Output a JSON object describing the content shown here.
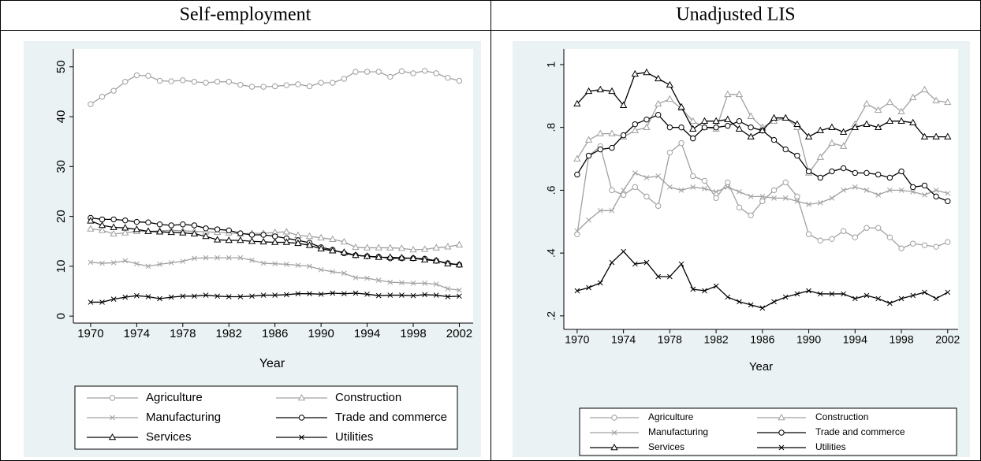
{
  "chart_data": [
    {
      "type": "line",
      "title": "Self-employment",
      "x_label": "Year",
      "x": [
        1970,
        1971,
        1972,
        1973,
        1974,
        1975,
        1976,
        1977,
        1978,
        1979,
        1980,
        1981,
        1982,
        1983,
        1984,
        1985,
        1986,
        1987,
        1988,
        1989,
        1990,
        1991,
        1992,
        1993,
        1994,
        1995,
        1996,
        1997,
        1998,
        1999,
        2000,
        2001,
        2002
      ],
      "xlim": [
        1968.5,
        2003.2
      ],
      "xticks": [
        1970,
        1974,
        1978,
        1982,
        1986,
        1990,
        1994,
        1998,
        2002
      ],
      "ylim": [
        -1.4,
        53.6
      ],
      "yticks": [
        0,
        10,
        20,
        30,
        40,
        50
      ],
      "series": [
        {
          "name": "Agriculture",
          "color": "#a0a0a0",
          "marker": "circle",
          "values": [
            42.5,
            44,
            45.2,
            47,
            48.3,
            48.2,
            47.2,
            47.1,
            47.3,
            47,
            46.8,
            47,
            47,
            46.4,
            46,
            46,
            46.1,
            46.3,
            46.5,
            46.1,
            46.8,
            46.8,
            47.6,
            49,
            49,
            49,
            48,
            49.1,
            48.7,
            49.2,
            48.7,
            47.8,
            47.2
          ]
        },
        {
          "name": "Construction",
          "color": "#a0a0a0",
          "marker": "triangle",
          "values": [
            17.5,
            17.2,
            16.5,
            16.7,
            17,
            17,
            17.1,
            17.2,
            17.1,
            17,
            16.9,
            16.8,
            16.7,
            16.5,
            16.6,
            16.6,
            16.8,
            16.9,
            16.2,
            16,
            15.7,
            15.4,
            14.9,
            13.8,
            13.7,
            13.7,
            13.7,
            13.6,
            13.3,
            13.4,
            13.7,
            13.9,
            14.3
          ]
        },
        {
          "name": "Manufacturing",
          "color": "#a0a0a0",
          "marker": "x",
          "values": [
            10.8,
            10.6,
            10.7,
            11.1,
            10.5,
            10,
            10.4,
            10.7,
            11,
            11.6,
            11.7,
            11.7,
            11.7,
            11.7,
            11.2,
            10.6,
            10.5,
            10.4,
            10.2,
            10,
            9.3,
            8.9,
            8.6,
            7.7,
            7.6,
            7.2,
            6.8,
            6.7,
            6.6,
            6.6,
            6.4,
            5.5,
            5.2
          ]
        },
        {
          "name": "Trade and commerce",
          "color": "#000000",
          "marker": "circle",
          "values": [
            19.7,
            19.4,
            19.4,
            19.2,
            18.9,
            18.8,
            18.4,
            18.2,
            18.4,
            18.2,
            17.6,
            17.4,
            17.2,
            16.6,
            16.3,
            16.3,
            16,
            15.6,
            15.2,
            14.7,
            13.8,
            13.3,
            12.6,
            12.2,
            12,
            11.9,
            11.6,
            11.6,
            11.6,
            11.5,
            11.1,
            10.6,
            10.3
          ]
        },
        {
          "name": "Services",
          "color": "#000000",
          "marker": "triangle",
          "values": [
            19.1,
            18.2,
            17.8,
            17.7,
            17.4,
            17,
            16.9,
            16.8,
            16.7,
            16.5,
            16,
            15.3,
            15.2,
            15.2,
            15,
            14.9,
            14.8,
            14.8,
            14.6,
            14.2,
            13.5,
            13.1,
            12.8,
            12.2,
            12,
            11.8,
            11.8,
            11.7,
            11.6,
            11.3,
            11.1,
            10.5,
            10.3
          ]
        },
        {
          "name": "Utilities",
          "color": "#000000",
          "marker": "x",
          "values": [
            2.8,
            2.8,
            3.4,
            3.8,
            4.1,
            3.9,
            3.5,
            3.8,
            4,
            4,
            4.2,
            4,
            3.9,
            3.9,
            4,
            4.2,
            4.2,
            4.3,
            4.5,
            4.5,
            4.4,
            4.6,
            4.5,
            4.6,
            4.4,
            4.1,
            4.2,
            4.2,
            4.1,
            4.3,
            4.2,
            3.9,
            4
          ]
        }
      ]
    },
    {
      "type": "line",
      "title": "Unadjusted LIS",
      "x_label": "Year",
      "x": [
        1970,
        1971,
        1972,
        1973,
        1974,
        1975,
        1976,
        1977,
        1978,
        1979,
        1980,
        1981,
        1982,
        1983,
        1984,
        1985,
        1986,
        1987,
        1988,
        1989,
        1990,
        1991,
        1992,
        1993,
        1994,
        1995,
        1996,
        1997,
        1998,
        1999,
        2000,
        2001,
        2002
      ],
      "xlim": [
        1968.85,
        2002.9
      ],
      "xticks": [
        1970,
        1974,
        1978,
        1982,
        1986,
        1990,
        1994,
        1998,
        2002
      ],
      "ylim": [
        0.157,
        1.05
      ],
      "yticks": [
        {
          "value": 0.2,
          "label": ".2"
        },
        {
          "value": 0.4,
          "label": ".4"
        },
        {
          "value": 0.6,
          "label": ".6"
        },
        {
          "value": 0.8,
          "label": ".8"
        },
        1
      ],
      "series": [
        {
          "name": "Agriculture",
          "color": "#a0a0a0",
          "marker": "circle",
          "values": [
            0.46,
            0.71,
            0.74,
            0.6,
            0.585,
            0.61,
            0.58,
            0.55,
            0.72,
            0.75,
            0.645,
            0.63,
            0.575,
            0.625,
            0.545,
            0.52,
            0.565,
            0.6,
            0.625,
            0.58,
            0.46,
            0.44,
            0.445,
            0.47,
            0.45,
            0.48,
            0.48,
            0.45,
            0.415,
            0.43,
            0.425,
            0.42,
            0.435
          ]
        },
        {
          "name": "Construction",
          "color": "#a0a0a0",
          "marker": "triangle",
          "values": [
            0.7,
            0.76,
            0.78,
            0.78,
            0.77,
            0.79,
            0.8,
            0.875,
            0.89,
            0.86,
            0.82,
            0.8,
            0.795,
            0.905,
            0.905,
            0.835,
            0.8,
            0.82,
            0.83,
            0.8,
            0.655,
            0.705,
            0.75,
            0.74,
            0.81,
            0.875,
            0.855,
            0.88,
            0.85,
            0.895,
            0.92,
            0.885,
            0.88
          ]
        },
        {
          "name": "Manufacturing",
          "color": "#a0a0a0",
          "marker": "x",
          "values": [
            0.47,
            0.505,
            0.535,
            0.535,
            0.6,
            0.655,
            0.64,
            0.645,
            0.61,
            0.6,
            0.61,
            0.605,
            0.595,
            0.61,
            0.595,
            0.58,
            0.58,
            0.575,
            0.575,
            0.565,
            0.555,
            0.56,
            0.575,
            0.6,
            0.61,
            0.6,
            0.585,
            0.6,
            0.6,
            0.595,
            0.585,
            0.6,
            0.59
          ]
        },
        {
          "name": "Trade and commerce",
          "color": "#000000",
          "marker": "circle",
          "values": [
            0.65,
            0.71,
            0.73,
            0.735,
            0.775,
            0.81,
            0.825,
            0.84,
            0.8,
            0.8,
            0.765,
            0.8,
            0.8,
            0.805,
            0.82,
            0.8,
            0.79,
            0.76,
            0.73,
            0.71,
            0.66,
            0.64,
            0.66,
            0.67,
            0.655,
            0.655,
            0.65,
            0.64,
            0.66,
            0.61,
            0.615,
            0.58,
            0.565
          ]
        },
        {
          "name": "Services",
          "color": "#000000",
          "marker": "triangle",
          "values": [
            0.875,
            0.915,
            0.92,
            0.915,
            0.87,
            0.97,
            0.975,
            0.955,
            0.935,
            0.865,
            0.795,
            0.82,
            0.82,
            0.825,
            0.795,
            0.77,
            0.79,
            0.83,
            0.83,
            0.81,
            0.77,
            0.79,
            0.8,
            0.785,
            0.8,
            0.81,
            0.8,
            0.82,
            0.82,
            0.815,
            0.77,
            0.77,
            0.77
          ]
        },
        {
          "name": "Utilities",
          "color": "#000000",
          "marker": "x",
          "values": [
            0.28,
            0.29,
            0.305,
            0.37,
            0.405,
            0.365,
            0.37,
            0.325,
            0.325,
            0.365,
            0.285,
            0.28,
            0.295,
            0.26,
            0.245,
            0.235,
            0.225,
            0.245,
            0.26,
            0.27,
            0.28,
            0.27,
            0.27,
            0.27,
            0.255,
            0.265,
            0.255,
            0.24,
            0.255,
            0.265,
            0.275,
            0.255,
            0.275
          ]
        }
      ]
    }
  ]
}
